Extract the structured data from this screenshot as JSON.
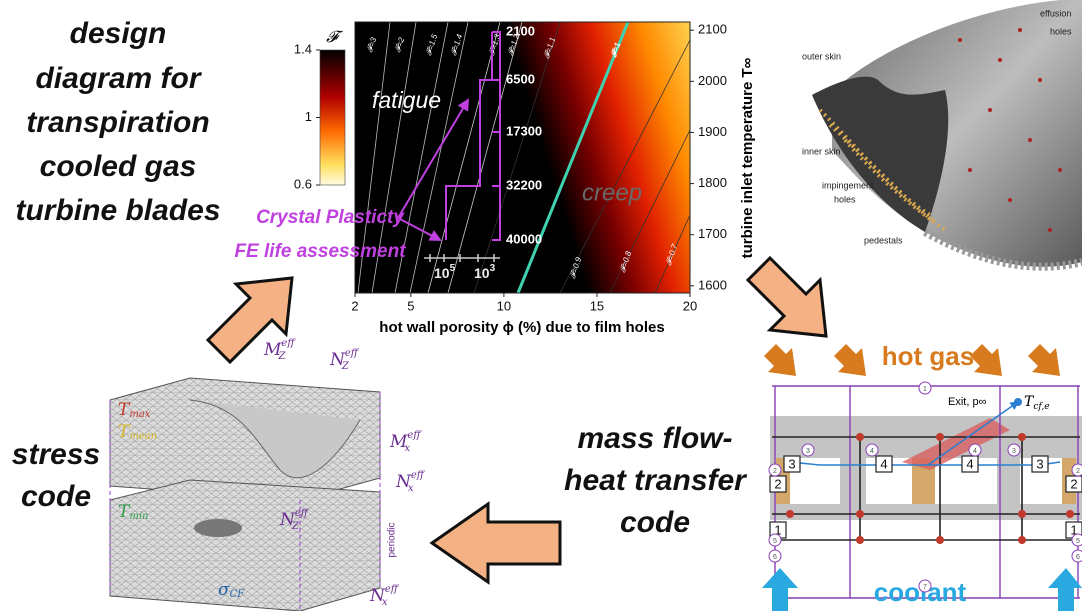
{
  "captions": {
    "design": [
      "design",
      "diagram for",
      "transpiration",
      "cooled gas",
      "turbine blades"
    ],
    "stress": [
      "stress",
      "code"
    ],
    "mass_flow": [
      "mass flow-",
      "heat transfer",
      "code"
    ]
  },
  "chart_data": {
    "type": "contour",
    "xlabel": "hot wall porosity ϕ (%) due to film holes",
    "ylabel": "turbine inlet temperature T∞",
    "xlim": [
      2,
      20
    ],
    "xticks": [
      2,
      5,
      10,
      15,
      20
    ],
    "ylim": [
      1586,
      2116
    ],
    "yticks": [
      1600,
      1700,
      1800,
      1900,
      2000,
      2100
    ],
    "colorbar": {
      "label": "𝓕",
      "lim": [
        0.6,
        1.4
      ],
      "ticks": [
        0.6,
        1,
        1.4
      ]
    },
    "regions": {
      "fatigue": "fatigue",
      "creep": "creep"
    },
    "method": [
      "Crystal Plasticty",
      "FE life assessment"
    ],
    "lives": [
      "2100",
      "6500",
      "17300",
      "32200",
      "40000"
    ],
    "life_scale": [
      {
        "base": "10",
        "sup": "5"
      },
      {
        "base": "10",
        "sup": "3"
      }
    ],
    "contours": [
      "𝓕=3",
      "𝓕=2",
      "𝓕=1.5",
      "𝓕=1.4",
      "𝓕=1.3",
      "𝓕=1.2",
      "𝓕=1.1",
      "𝓕=1",
      "𝓕=0.9",
      "𝓕=0.8",
      "𝓕=0.7"
    ]
  },
  "blade": {
    "outer": "outer skin",
    "effusion": [
      "effusion",
      "holes"
    ],
    "inner": "inner skin",
    "impingement": [
      "impingement",
      "holes"
    ],
    "pedestals": "pedestals"
  },
  "stress": {
    "t_max": {
      "base": "T",
      "sub": "max"
    },
    "t_mean": {
      "base": "T",
      "sub": "mean"
    },
    "t_min": {
      "base": "T",
      "sub": "min"
    },
    "mz": {
      "base": "M",
      "sub": "Z",
      "sup": "eff"
    },
    "nz_top": {
      "base": "N",
      "sub": "Z",
      "sup": "eff"
    },
    "mx": {
      "base": "M",
      "sub": "x",
      "sup": "eff"
    },
    "nx_right": {
      "base": "N",
      "sub": "x",
      "sup": "eff"
    },
    "nz_mid": {
      "base": "N",
      "sub": "Z",
      "sup": "eff"
    },
    "nx_bottom": {
      "base": "N",
      "sub": "x",
      "sup": "eff"
    },
    "sigma": {
      "base": "σ",
      "sub": "CF"
    },
    "periodic": "periodic"
  },
  "flow": {
    "hot_gas": "hot gas",
    "coolant": "coolant",
    "exit": "Exit, p∞",
    "t_exit": {
      "base": "T",
      "sub": "cf,e"
    },
    "boxes": [
      "3",
      "4",
      "4",
      "3",
      "2",
      "1",
      "2",
      "1"
    ],
    "nodes": [
      "1",
      "2",
      "3",
      "4",
      "4",
      "3",
      "2",
      "5",
      "6",
      "7",
      "5",
      "6"
    ]
  }
}
